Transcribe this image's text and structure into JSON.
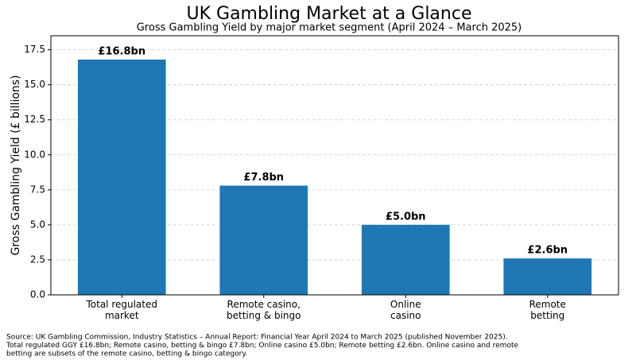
{
  "chart_data": {
    "type": "bar",
    "title": "UK Gambling Market at a Glance",
    "subtitle": "Gross Gambling Yield by major market segment (April 2024 – March 2025)",
    "y_label": "Gross Gambling Yield (£ billions)",
    "categories": [
      "Total regulated\nmarket",
      "Remote casino,\nbetting & bingo",
      "Online\ncasino",
      "Remote\nbetting"
    ],
    "values": [
      16.8,
      7.8,
      5.0,
      2.6
    ],
    "value_labels": [
      "£16.8bn",
      "£7.8bn",
      "£5.0bn",
      "£2.6bn"
    ],
    "color": "#1f77b4",
    "ylim": [
      0,
      18.5
    ],
    "yticks": [
      {
        "value": 0,
        "label": "0.0"
      },
      2.5,
      {
        "value": 5,
        "label": "5.0"
      },
      7.5,
      {
        "value": 10,
        "label": "10.0"
      },
      12.5,
      {
        "value": 15,
        "label": "15.0"
      },
      17.5
    ],
    "grid": true,
    "source": [
      "Source: UK Gambling Commission, Industry Statistics – Annual Report: Financial Year April 2024 to March 2025 (published November 2025).",
      "Total regulated GGY £16.8bn; Remote casino, betting & bingo £7.8bn; Online casino £5.0bn; Remote betting £2.6bn. Online casino and remote",
      "betting are subsets of the remote casino, betting & bingo category."
    ]
  }
}
